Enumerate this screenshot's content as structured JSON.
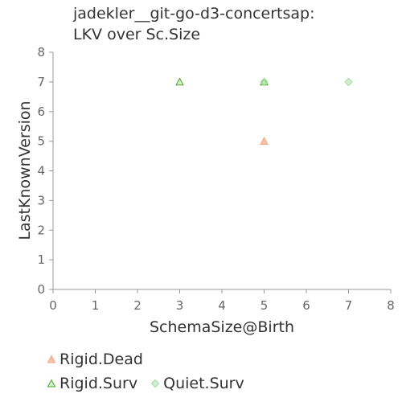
{
  "title_line1": "jadekler__git-go-d3-concertsap:",
  "title_line2": "LKV over Sc.Size",
  "chart_data": {
    "type": "scatter",
    "title": "jadekler__git-go-d3-concertsap: LKV over Sc.Size",
    "xlabel": "SchemaSize@Birth",
    "ylabel": "LastKnownVersion",
    "xlim": [
      0,
      8
    ],
    "ylim": [
      0,
      8
    ],
    "xticks": [
      0,
      1,
      2,
      3,
      4,
      5,
      6,
      7,
      8
    ],
    "yticks": [
      0,
      1,
      2,
      3,
      4,
      5,
      6,
      7,
      8
    ],
    "grid": false,
    "legend_position": "bottom",
    "series": [
      {
        "name": "Rigid.Dead",
        "marker": "triangle",
        "color": "#F4A582",
        "points": [
          {
            "x": 5,
            "y": 5
          }
        ]
      },
      {
        "name": "Rigid.Surv",
        "marker": "triangle",
        "color": "#4DAC26",
        "points": [
          {
            "x": 3,
            "y": 7
          },
          {
            "x": 5,
            "y": 7
          }
        ]
      },
      {
        "name": "Quiet.Surv",
        "marker": "diamond",
        "color": "#A6DBA0",
        "points": [
          {
            "x": 5,
            "y": 7
          },
          {
            "x": 7,
            "y": 7
          }
        ]
      }
    ]
  }
}
